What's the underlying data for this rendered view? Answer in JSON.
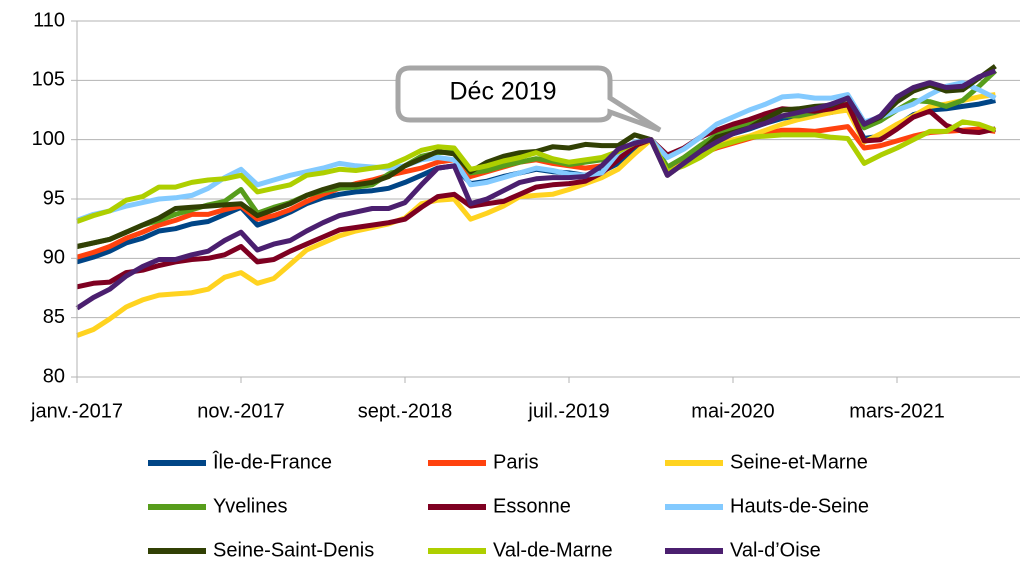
{
  "chart_data": {
    "type": "line",
    "annotation": "Déc 2019",
    "categories": [
      "janv.-2017",
      null,
      null,
      null,
      null,
      null,
      null,
      null,
      null,
      null,
      "nov.-2017",
      null,
      null,
      null,
      null,
      null,
      null,
      null,
      null,
      null,
      "sept.-2018",
      null,
      null,
      null,
      null,
      null,
      null,
      null,
      null,
      null,
      "juil.-2019",
      null,
      null,
      null,
      null,
      null,
      null,
      null,
      null,
      null,
      "mai-2020",
      null,
      null,
      null,
      null,
      null,
      null,
      null,
      null,
      null,
      "mars-2021",
      null,
      null,
      null,
      null,
      null,
      null
    ],
    "ylim": [
      80,
      110
    ],
    "yticks": [
      80,
      85,
      90,
      95,
      100,
      105,
      110
    ],
    "grid": true,
    "series": [
      {
        "name": "Île-de-France",
        "color": "#004586",
        "values": [
          89.7,
          90.1,
          90.6,
          91.3,
          91.7,
          92.3,
          92.5,
          92.9,
          93.1,
          93.7,
          94.3,
          92.8,
          93.3,
          93.9,
          94.6,
          95.1,
          95.4,
          95.6,
          95.7,
          95.9,
          96.4,
          97.0,
          97.6,
          97.8,
          96.3,
          96.5,
          96.9,
          97.2,
          97.5,
          97.3,
          97.2,
          97.0,
          97.3,
          98.0,
          99.3,
          100,
          97.3,
          98.3,
          99.2,
          100.0,
          100.5,
          100.9,
          101.4,
          101.8,
          102.0,
          102.1,
          102.3,
          102.6,
          100.1,
          100.3,
          101.2,
          102.1,
          102.5,
          102.6,
          102.8,
          103.0,
          103.3
        ]
      },
      {
        "name": "Paris",
        "color": "#ff420e",
        "values": [
          90.1,
          90.5,
          91.0,
          91.7,
          92.2,
          92.8,
          93.2,
          93.7,
          93.7,
          94.1,
          94.4,
          93.3,
          93.6,
          94.1,
          94.8,
          95.4,
          95.9,
          96.3,
          96.6,
          97.0,
          97.3,
          97.6,
          98.1,
          98.3,
          96.9,
          97.3,
          97.7,
          98.1,
          98.3,
          98.0,
          97.8,
          97.6,
          97.8,
          98.5,
          99.5,
          100,
          97.5,
          98.3,
          98.8,
          99.3,
          99.7,
          100.1,
          100.5,
          100.8,
          100.8,
          100.7,
          100.9,
          101.1,
          99.3,
          99.5,
          99.9,
          100.3,
          100.6,
          100.7,
          100.8,
          100.9,
          100.7
        ]
      },
      {
        "name": "Seine-et-Marne",
        "color": "#ffd320",
        "values": [
          83.5,
          84.0,
          84.9,
          85.9,
          86.5,
          86.9,
          87.0,
          87.1,
          87.4,
          88.4,
          88.8,
          87.9,
          88.3,
          89.5,
          90.7,
          91.3,
          91.9,
          92.3,
          92.6,
          92.9,
          93.4,
          94.6,
          94.9,
          95.0,
          93.3,
          93.8,
          94.4,
          95.2,
          95.3,
          95.4,
          95.8,
          96.3,
          96.8,
          97.5,
          98.8,
          100,
          97.2,
          98.0,
          98.8,
          99.5,
          100.0,
          100.3,
          100.8,
          101.3,
          101.7,
          102.0,
          102.3,
          102.5,
          99.8,
          100.5,
          101.3,
          102.0,
          102.8,
          103.0,
          103.3,
          103.6,
          103.8
        ]
      },
      {
        "name": "Yvelines",
        "color": "#579d1c",
        "values": [
          91.0,
          91.3,
          91.6,
          92.2,
          92.8,
          93.2,
          93.7,
          94.1,
          94.5,
          94.8,
          95.8,
          93.8,
          94.3,
          94.7,
          95.3,
          95.7,
          95.9,
          96.0,
          96.2,
          97.1,
          97.8,
          98.6,
          98.9,
          99.0,
          97.2,
          97.4,
          97.8,
          98.1,
          98.4,
          98.2,
          97.9,
          98.1,
          98.3,
          98.7,
          99.6,
          100,
          97.7,
          98.5,
          99.5,
          100.4,
          100.9,
          101.3,
          101.8,
          102.0,
          102.0,
          102.3,
          102.7,
          103.0,
          101.0,
          101.6,
          102.5,
          103.3,
          103.2,
          102.8,
          103.3,
          104.5,
          105.8
        ]
      },
      {
        "name": "Essonne",
        "color": "#7e0021",
        "values": [
          87.6,
          87.9,
          88.0,
          88.8,
          89.0,
          89.4,
          89.7,
          89.9,
          90.0,
          90.3,
          91.0,
          89.7,
          89.9,
          90.6,
          91.2,
          91.8,
          92.4,
          92.6,
          92.8,
          93.0,
          93.3,
          94.3,
          95.2,
          95.4,
          94.4,
          94.6,
          94.8,
          95.4,
          96.0,
          96.2,
          96.3,
          96.5,
          97.2,
          98.3,
          99.5,
          100,
          98.7,
          99.3,
          100.2,
          100.8,
          101.3,
          101.7,
          102.2,
          102.6,
          102.5,
          102.4,
          102.6,
          103.0,
          99.9,
          100.0,
          100.9,
          101.9,
          102.4,
          101.2,
          100.7,
          100.6,
          100.9
        ]
      },
      {
        "name": "Hauts-de-Seine",
        "color": "#83caff",
        "values": [
          93.2,
          93.7,
          94.0,
          94.4,
          94.7,
          95.0,
          95.1,
          95.3,
          95.9,
          96.8,
          97.5,
          96.2,
          96.6,
          97.0,
          97.3,
          97.6,
          98.0,
          97.8,
          97.7,
          97.6,
          97.8,
          98.3,
          98.5,
          98.3,
          96.2,
          96.4,
          96.8,
          97.2,
          97.6,
          97.4,
          97.1,
          97.0,
          97.2,
          98.9,
          99.8,
          100,
          98.5,
          99.2,
          100.2,
          101.3,
          101.9,
          102.5,
          103.0,
          103.6,
          103.7,
          103.5,
          103.5,
          103.8,
          101.5,
          101.9,
          102.5,
          103.0,
          103.8,
          104.5,
          104.8,
          104.2,
          103.5
        ]
      },
      {
        "name": "Seine-Saint-Denis",
        "color": "#314004",
        "values": [
          91.0,
          91.3,
          91.6,
          92.2,
          92.8,
          93.4,
          94.2,
          94.3,
          94.4,
          94.5,
          94.6,
          93.6,
          94.1,
          94.6,
          95.3,
          95.8,
          96.2,
          96.2,
          96.4,
          96.9,
          97.8,
          98.4,
          99.0,
          98.8,
          97.3,
          98.1,
          98.6,
          98.9,
          99.0,
          99.4,
          99.3,
          99.6,
          99.5,
          99.5,
          100.4,
          100,
          97.0,
          98.0,
          99.0,
          100.2,
          100.6,
          101.0,
          101.8,
          102.5,
          102.6,
          102.8,
          102.9,
          103.5,
          101.3,
          101.9,
          103.2,
          104.1,
          104.6,
          104.1,
          104.2,
          105.2,
          106.2
        ]
      },
      {
        "name": "Val-de-Marne",
        "color": "#aecf00",
        "values": [
          93.1,
          93.6,
          94.0,
          94.9,
          95.2,
          96.0,
          96.0,
          96.4,
          96.6,
          96.7,
          97.0,
          95.6,
          95.9,
          96.2,
          97.0,
          97.2,
          97.5,
          97.4,
          97.6,
          97.8,
          98.4,
          99.1,
          99.4,
          99.3,
          97.5,
          97.8,
          98.2,
          98.5,
          98.9,
          98.4,
          98.1,
          98.3,
          98.5,
          99.0,
          99.7,
          100,
          97.3,
          97.8,
          98.5,
          99.4,
          99.8,
          100.2,
          100.3,
          100.4,
          100.4,
          100.4,
          100.2,
          100.1,
          98.0,
          98.7,
          99.3,
          100.0,
          100.7,
          100.7,
          101.5,
          101.3,
          100.8
        ]
      },
      {
        "name": "Val-d’Oise",
        "color": "#4b1f6f",
        "values": [
          85.8,
          86.7,
          87.4,
          88.5,
          89.3,
          89.9,
          89.9,
          90.3,
          90.6,
          91.5,
          92.2,
          90.7,
          91.2,
          91.5,
          92.3,
          93.0,
          93.6,
          93.9,
          94.2,
          94.2,
          94.7,
          96.2,
          97.6,
          97.8,
          94.6,
          95.0,
          95.7,
          96.4,
          96.7,
          96.8,
          96.8,
          96.9,
          97.8,
          99.2,
          99.7,
          100,
          97.0,
          98.0,
          99.0,
          99.8,
          100.5,
          101.0,
          101.4,
          102.0,
          102.3,
          102.6,
          103.0,
          103.5,
          101.3,
          102.0,
          103.6,
          104.4,
          104.8,
          104.4,
          104.5,
          105.3,
          105.8
        ]
      }
    ]
  }
}
